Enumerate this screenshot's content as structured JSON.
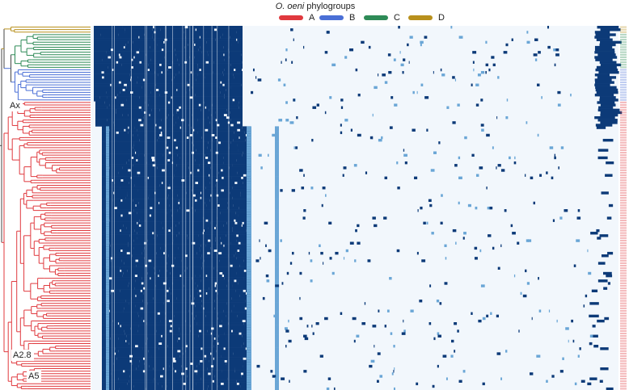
{
  "title": {
    "species": "O. oeni",
    "rest": "phylogroups"
  },
  "legend": [
    {
      "name": "A",
      "color": "#e0393e"
    },
    {
      "name": "B",
      "color": "#4a6fd6"
    },
    {
      "name": "C",
      "color": "#2e8b57"
    },
    {
      "name": "D",
      "color": "#b8901c"
    }
  ],
  "clade_labels": [
    "Ax",
    "A2.8",
    "A5"
  ]
}
